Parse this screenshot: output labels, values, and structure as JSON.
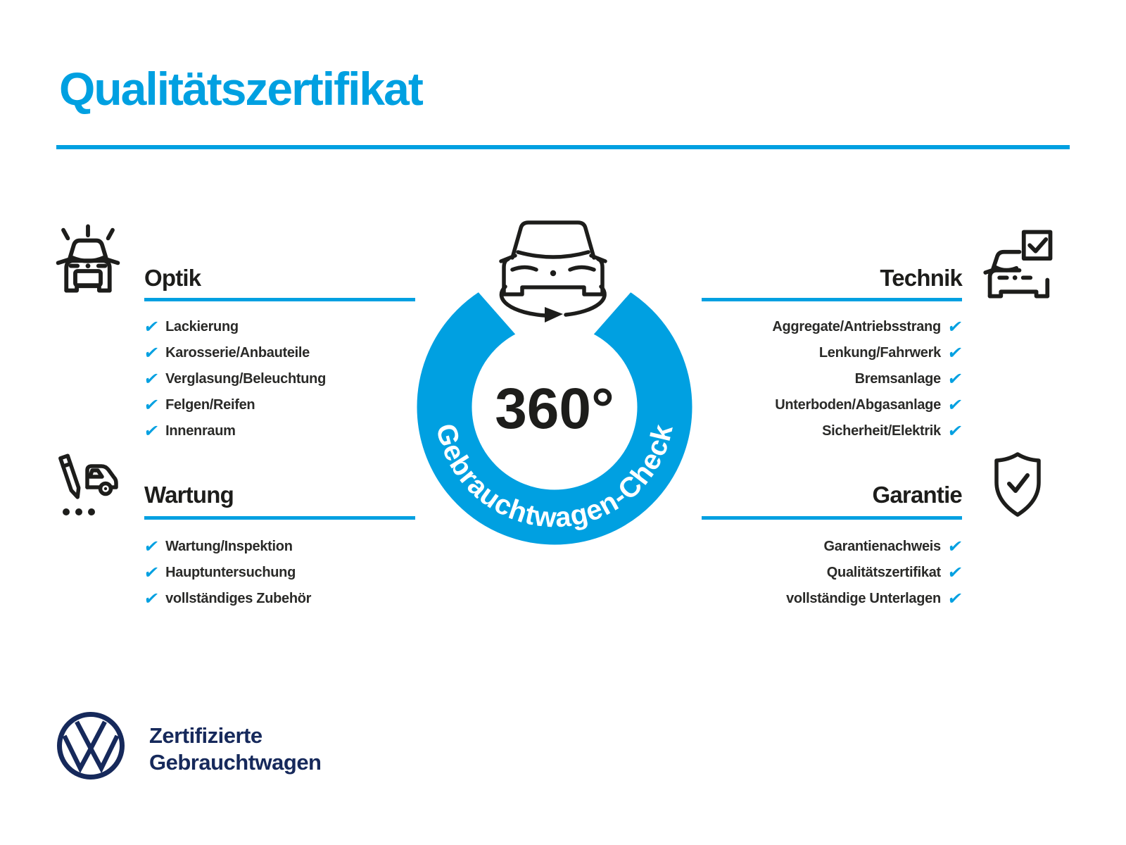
{
  "title": "Qualitätszertifikat",
  "colors": {
    "accent": "#00a0e1",
    "ink": "#1d1d1b",
    "navy": "#16295b"
  },
  "check_glyph": "✔",
  "badge": {
    "degrees": "360°",
    "ring_text": "Gebrauchtwagen-Check",
    "car_icon": "car-rotation-icon"
  },
  "sections": [
    {
      "label": "Optik",
      "icon": "car-highlights-icon",
      "align": "left",
      "items": [
        "Lackierung",
        "Karosserie/Anbauteile",
        "Verglasung/Beleuchtung",
        "Felgen/Reifen",
        "Innenraum"
      ]
    },
    {
      "label": "Wartung",
      "icon": "pencil-car-icon",
      "align": "left",
      "items": [
        "Wartung/Inspektion",
        "Hauptuntersuchung",
        "vollständiges Zubehör"
      ]
    },
    {
      "label": "Technik",
      "icon": "car-checkbox-icon",
      "align": "right",
      "items": [
        "Aggregate/Antriebsstrang",
        "Lenkung/Fahrwerk",
        "Bremsanlage",
        "Unterboden/Abgasanlage",
        "Sicherheit/Elektrik"
      ]
    },
    {
      "label": "Garantie",
      "icon": "shield-check-icon",
      "align": "right",
      "items": [
        "Garantienachweis",
        "Qualitätszertifikat",
        "vollständige Unterlagen"
      ]
    }
  ],
  "footer": {
    "logo": "vw-logo",
    "brand_line1": "Zertifizierte",
    "brand_line2": "Gebrauchtwagen"
  }
}
